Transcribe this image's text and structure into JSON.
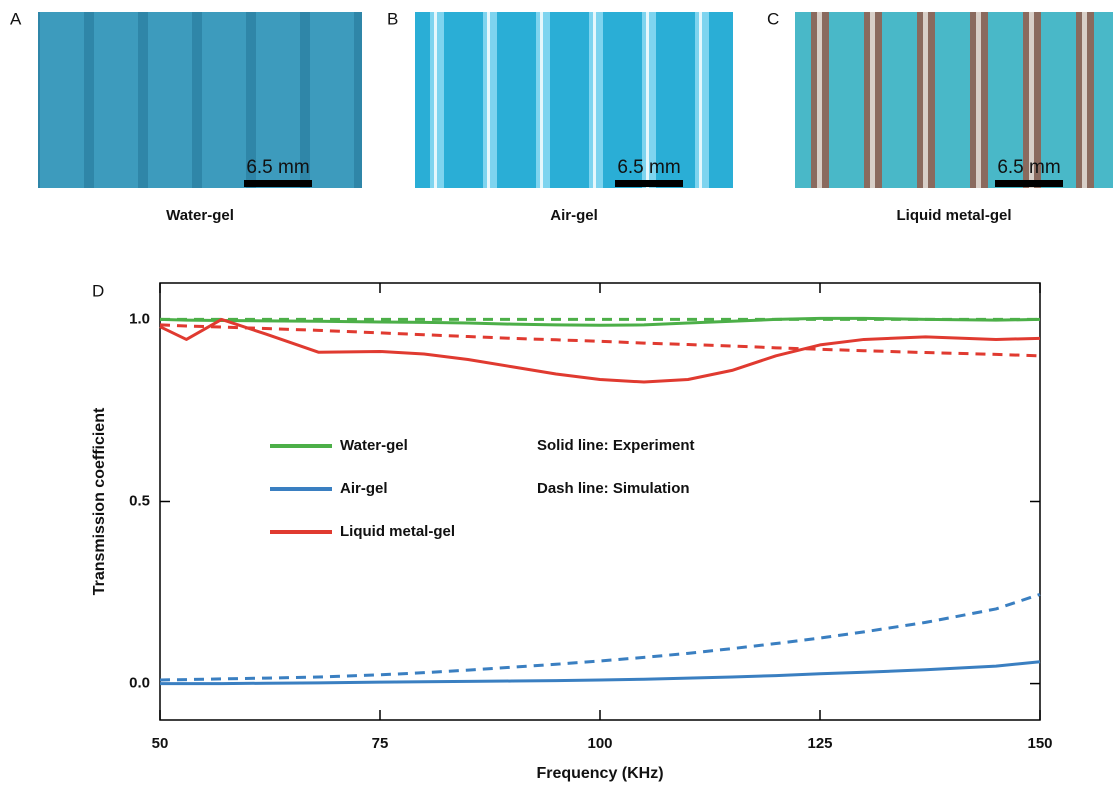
{
  "panels": [
    {
      "label": "A",
      "caption": "Water-gel",
      "scale": "6.5 mm"
    },
    {
      "label": "B",
      "caption": "Air-gel",
      "scale": "6.5 mm"
    },
    {
      "label": "C",
      "caption": "Liquid metal-gel",
      "scale": "6.5 mm"
    }
  ],
  "chart_data": {
    "type": "line",
    "label": "D",
    "xlabel": "Frequency (KHz)",
    "ylabel": "Transmission coefficient",
    "xlim": [
      50,
      150
    ],
    "xticks": [
      50,
      75,
      100,
      125,
      150
    ],
    "ylim": [
      -0.1,
      1.1
    ],
    "yticks": [
      {
        "value": 0,
        "label": "0.0"
      },
      0.5,
      {
        "value": 1,
        "label": "1.0"
      }
    ],
    "annotations": [
      "Solid line: Experiment",
      "Dash line: Simulation"
    ],
    "x": [
      50,
      53,
      57,
      62,
      68,
      75,
      80,
      85,
      90,
      95,
      100,
      105,
      110,
      115,
      120,
      125,
      130,
      137,
      145,
      150
    ],
    "series": [
      {
        "name": "Water-gel",
        "color": "#4caf48",
        "values": [
          1.0,
          0.998,
          0.997,
          0.996,
          0.995,
          0.993,
          0.992,
          0.99,
          0.987,
          0.985,
          0.984,
          0.985,
          0.99,
          0.995,
          1.0,
          1.003,
          1.003,
          1.0,
          0.998,
          1.0
        ],
        "simulation": [
          1.0,
          1.0,
          1.0,
          1.0,
          1.0,
          1.0,
          1.0,
          1.0,
          1.0,
          1.0,
          1.0,
          1.0,
          1.0,
          1.0,
          1.0,
          1.0,
          1.0,
          1.0,
          1.0,
          1.0
        ]
      },
      {
        "name": "Air-gel",
        "color": "#3a7fc1",
        "values": [
          0,
          0,
          0,
          0.001,
          0.002,
          0.004,
          0.005,
          0.006,
          0.007,
          0.008,
          0.01,
          0.012,
          0.015,
          0.018,
          0.022,
          0.027,
          0.031,
          0.038,
          0.048,
          0.06
        ],
        "simulation": [
          0.01,
          0.011,
          0.013,
          0.015,
          0.018,
          0.024,
          0.03,
          0.037,
          0.045,
          0.053,
          0.062,
          0.072,
          0.083,
          0.096,
          0.11,
          0.125,
          0.142,
          0.168,
          0.205,
          0.245
        ]
      },
      {
        "name": "Liquid metal-gel",
        "color": "#e03a30",
        "values": [
          0.98,
          0.945,
          1.0,
          0.96,
          0.91,
          0.912,
          0.905,
          0.89,
          0.87,
          0.85,
          0.835,
          0.828,
          0.835,
          0.86,
          0.9,
          0.93,
          0.945,
          0.952,
          0.945,
          0.948
        ],
        "simulation": [
          0.985,
          0.982,
          0.979,
          0.975,
          0.97,
          0.963,
          0.958,
          0.953,
          0.948,
          0.944,
          0.94,
          0.935,
          0.931,
          0.927,
          0.922,
          0.918,
          0.914,
          0.909,
          0.904,
          0.9
        ]
      }
    ]
  }
}
